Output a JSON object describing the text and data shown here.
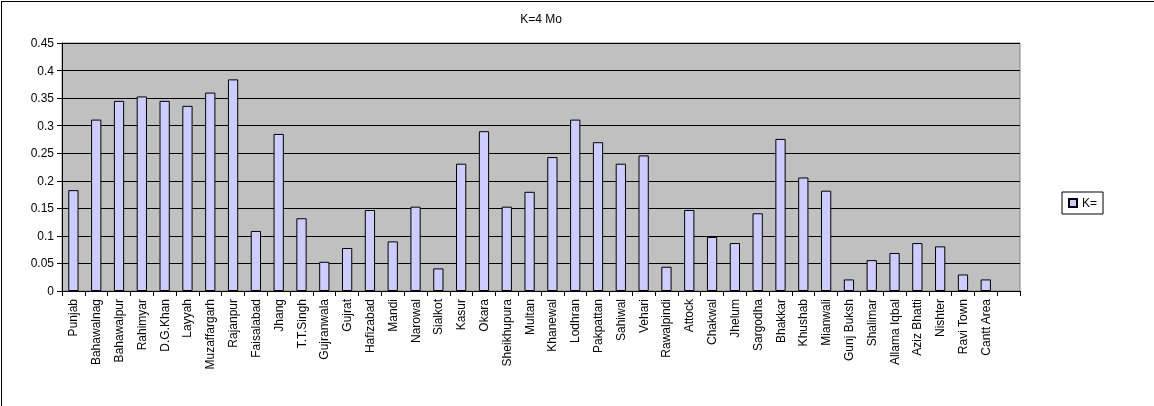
{
  "chart_data": {
    "type": "bar",
    "title": "K=4 Mo",
    "categories": [
      "Punjab",
      "Bahawalnag",
      "Bahawalpur",
      "Rahimyar",
      "D.G.Khan",
      "Layyah",
      "Muzaffargarh",
      "Rajanpur",
      "Faisalabad",
      "Jhang",
      "T.T.Singh",
      "Gujranwala",
      "Gujrat",
      "Hafizabad",
      "Mandi",
      "Narowal",
      "Sialkot",
      "Kasur",
      "Okara",
      "Sheikhupura",
      "Multan",
      "Khanewal",
      "Lodhran",
      "Pakpattan",
      "Sahiwal",
      "Vehari",
      "Rawalpindi",
      "Attock",
      "Chakwal",
      "Jhelum",
      "Sargodha",
      "Bhakkar",
      "Khushab",
      "Mianwali",
      "Gunj Buksh",
      "Shalimar",
      "Allama Iqbal",
      "Aziz Bhatti",
      "Nishter",
      "Ravi Town",
      "Cantt Area",
      null
    ],
    "series": [
      {
        "name": "K=",
        "color": "#ccccff",
        "values": [
          0.183,
          0.311,
          0.345,
          0.353,
          0.345,
          0.336,
          0.36,
          0.384,
          0.109,
          0.285,
          0.132,
          0.053,
          0.078,
          0.147,
          0.09,
          0.153,
          0.041,
          0.231,
          0.29,
          0.153,
          0.18,
          0.243,
          0.311,
          0.27,
          0.231,
          0.246,
          0.044,
          0.147,
          0.098,
          0.087,
          0.141,
          0.276,
          0.206,
          0.182,
          0.021,
          0.056,
          0.069,
          0.087,
          0.081,
          0.03,
          0.021,
          null
        ]
      }
    ],
    "ylim": [
      0,
      0.45
    ],
    "yticks": [
      0,
      0.05,
      0.1,
      0.15,
      0.2,
      0.25,
      0.3,
      0.35,
      0.4,
      0.45
    ],
    "grid": "y",
    "legend": "right"
  }
}
